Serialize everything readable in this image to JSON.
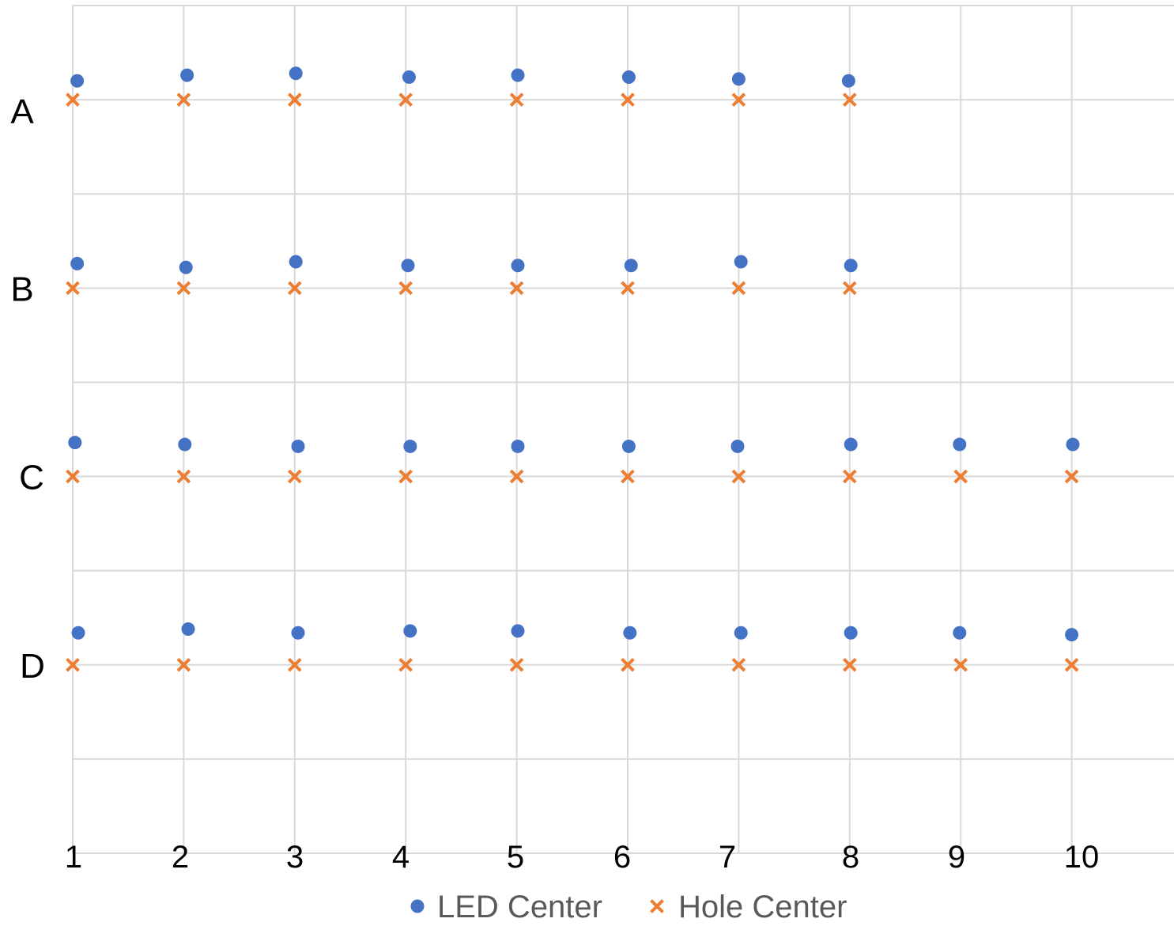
{
  "chart_data": {
    "type": "scatter",
    "title": "",
    "xlabel": "",
    "ylabel": "",
    "xlim": [
      1,
      10.93
    ],
    "ylim": [
      0,
      4.5
    ],
    "x_ticks": [
      1,
      2,
      3,
      4,
      5,
      6,
      7,
      8,
      9,
      10
    ],
    "x_tick_labels": [
      "1",
      "2",
      "3",
      "4",
      "5",
      "6",
      "7",
      "8",
      "9",
      "10"
    ],
    "y_gridlines": [
      0.5,
      1,
      1.5,
      2,
      2.5,
      3,
      3.5,
      4,
      4.5
    ],
    "row_labels": [
      {
        "label": "A",
        "y": 4
      },
      {
        "label": "B",
        "y": 3
      },
      {
        "label": "C",
        "y": 2
      },
      {
        "label": "D",
        "y": 1
      }
    ],
    "grid": true,
    "legend_position": "bottom",
    "series": [
      {
        "name": "LED Center",
        "marker": "circle",
        "color": "#4472C4",
        "points": [
          [
            1.04,
            4.1
          ],
          [
            2.03,
            4.13
          ],
          [
            3.01,
            4.14
          ],
          [
            4.03,
            4.12
          ],
          [
            5.01,
            4.13
          ],
          [
            6.01,
            4.12
          ],
          [
            7.0,
            4.11
          ],
          [
            7.99,
            4.1
          ],
          [
            1.04,
            3.13
          ],
          [
            2.02,
            3.11
          ],
          [
            3.01,
            3.14
          ],
          [
            4.02,
            3.12
          ],
          [
            5.01,
            3.12
          ],
          [
            6.03,
            3.12
          ],
          [
            7.02,
            3.14
          ],
          [
            8.01,
            3.12
          ],
          [
            1.02,
            2.18
          ],
          [
            2.01,
            2.17
          ],
          [
            3.03,
            2.16
          ],
          [
            4.04,
            2.16
          ],
          [
            5.01,
            2.16
          ],
          [
            6.01,
            2.16
          ],
          [
            6.99,
            2.16
          ],
          [
            8.01,
            2.17
          ],
          [
            8.99,
            2.17
          ],
          [
            10.01,
            2.17
          ],
          [
            1.05,
            1.17
          ],
          [
            2.04,
            1.19
          ],
          [
            3.03,
            1.17
          ],
          [
            4.04,
            1.18
          ],
          [
            5.01,
            1.18
          ],
          [
            6.02,
            1.17
          ],
          [
            7.02,
            1.17
          ],
          [
            8.01,
            1.17
          ],
          [
            8.99,
            1.17
          ],
          [
            10.0,
            1.16
          ]
        ]
      },
      {
        "name": "Hole Center",
        "marker": "x",
        "color": "#ED7D31",
        "points": [
          [
            1,
            4
          ],
          [
            2,
            4
          ],
          [
            3,
            4
          ],
          [
            4,
            4
          ],
          [
            5,
            4
          ],
          [
            6,
            4
          ],
          [
            7,
            4
          ],
          [
            8,
            4
          ],
          [
            1,
            3
          ],
          [
            2,
            3
          ],
          [
            3,
            3
          ],
          [
            4,
            3
          ],
          [
            5,
            3
          ],
          [
            6,
            3
          ],
          [
            7,
            3
          ],
          [
            8,
            3
          ],
          [
            1,
            2
          ],
          [
            2,
            2
          ],
          [
            3,
            2
          ],
          [
            4,
            2
          ],
          [
            5,
            2
          ],
          [
            6,
            2
          ],
          [
            7,
            2
          ],
          [
            8,
            2
          ],
          [
            9,
            2
          ],
          [
            10,
            2
          ],
          [
            1,
            1
          ],
          [
            2,
            1
          ],
          [
            3,
            1
          ],
          [
            4,
            1
          ],
          [
            5,
            1
          ],
          [
            6,
            1
          ],
          [
            7,
            1
          ],
          [
            8,
            1
          ],
          [
            9,
            1
          ],
          [
            10,
            1
          ]
        ]
      }
    ]
  }
}
